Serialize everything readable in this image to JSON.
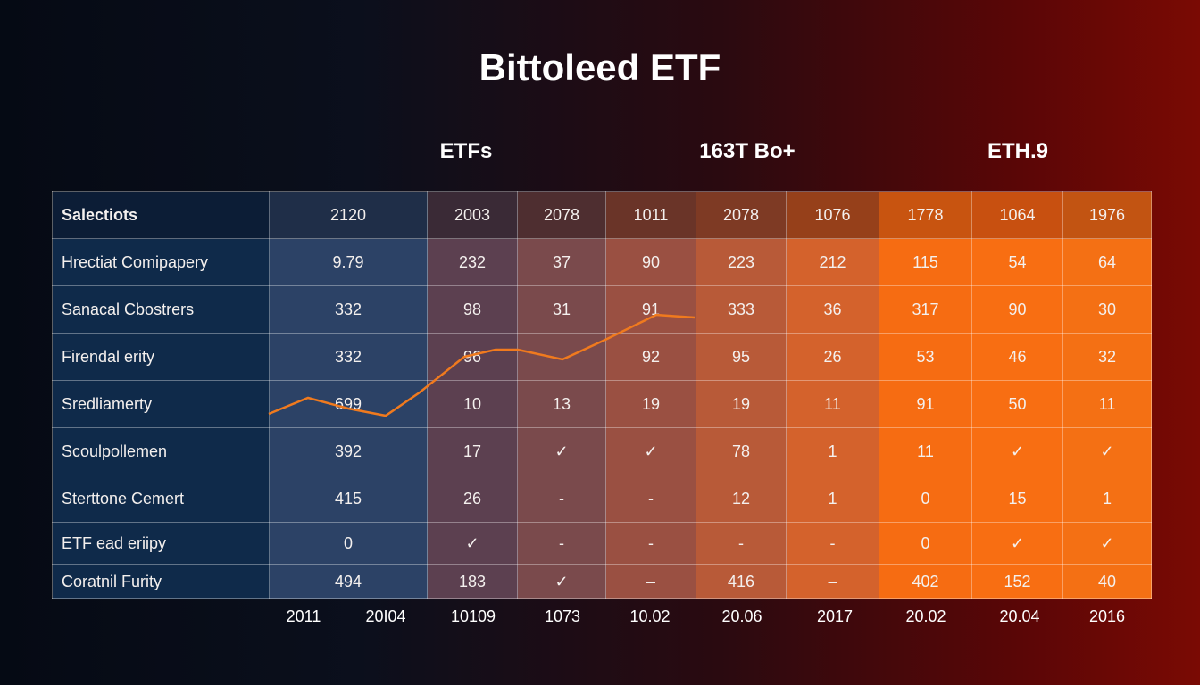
{
  "title": "Bittoleed ETF",
  "groups": [
    "ETFs",
    "163T Bo+",
    "ETH.9"
  ],
  "colors": {
    "accent_blue": "#0f2a4a",
    "accent_orange": "#f66c12",
    "line": "#f07a1e"
  },
  "chart_data": {
    "type": "table",
    "title": "Bittoleed ETF",
    "header": [
      "Salectiots",
      "2120",
      "2003",
      "2078",
      "1011",
      "2078",
      "1076",
      "1778",
      "1064",
      "1976"
    ],
    "rows": [
      [
        "Hrectiat Comipapery",
        "9.79",
        "232",
        "37",
        "90",
        "223",
        "212",
        "115",
        "54",
        "64"
      ],
      [
        "Sanacal Cbostrers",
        "332",
        "98",
        "31",
        "91",
        "333",
        "36",
        "317",
        "90",
        "30"
      ],
      [
        "Firendal erity",
        "332",
        "96",
        "",
        "92",
        "95",
        "26",
        "53",
        "46",
        "32"
      ],
      [
        "Sredliamerty",
        "699",
        "10",
        "13",
        "19",
        "19",
        "11",
        "91",
        "50",
        "11"
      ],
      [
        "Scoulpollemen",
        "392",
        "17",
        "✓",
        "✓",
        "78",
        "1",
        "11",
        "✓",
        "✓"
      ],
      [
        "Sterttone Cemert",
        "415",
        "26",
        "-",
        "-",
        "12",
        "1",
        "0",
        "15",
        "1"
      ],
      [
        "ETF ead eriipy",
        "0",
        "✓",
        "-",
        "-",
        "-",
        "-",
        "0",
        "✓",
        "✓"
      ],
      [
        "Coratnil Furity",
        "494",
        "183",
        "✓",
        "–",
        "416",
        "–",
        "402",
        "152",
        "40"
      ]
    ],
    "x_labels": [
      "2011",
      "20I04",
      "10109",
      "1073",
      "10.02",
      "20.06",
      "2017",
      "20.02",
      "20.04",
      "2016"
    ]
  }
}
